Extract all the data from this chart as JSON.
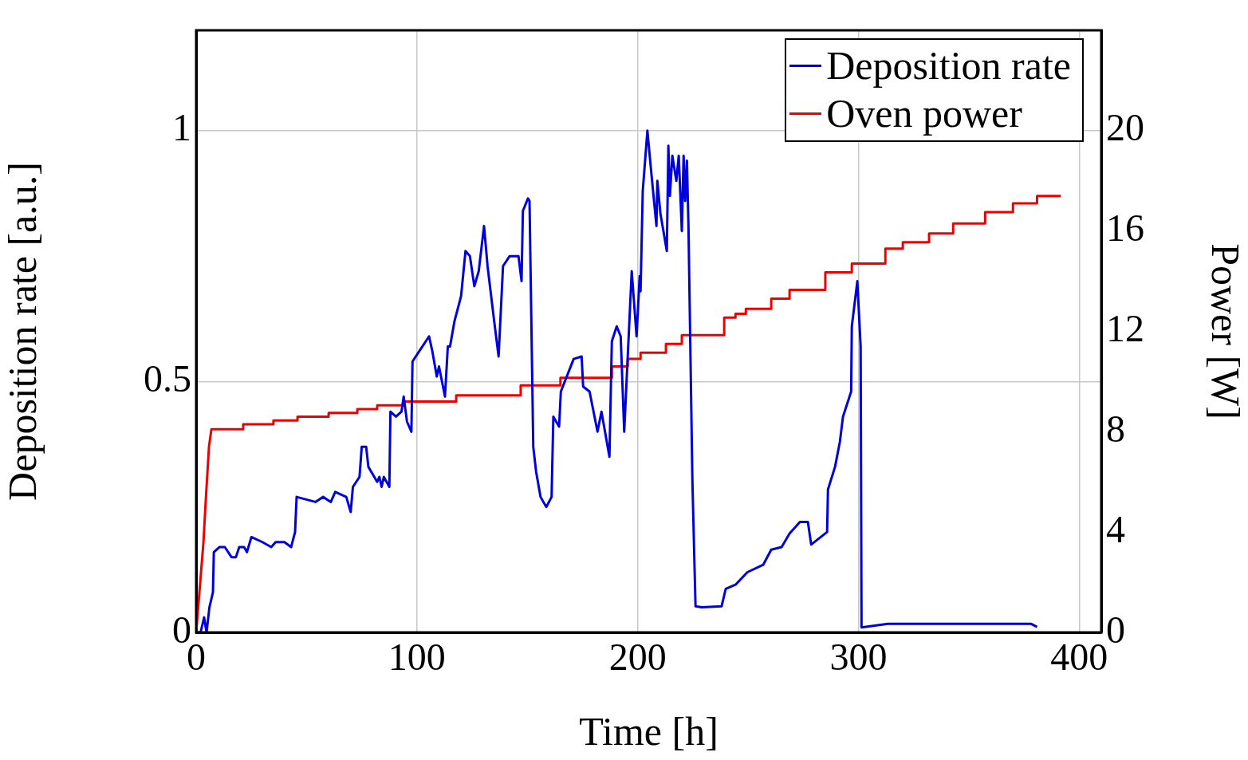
{
  "chart_data": {
    "type": "line",
    "xlabel": "Time [h]",
    "ylabel": "Deposition rate [a.u.]",
    "y2label": "Power [W]",
    "xlim": [
      0,
      410
    ],
    "xticks": [
      0,
      100,
      200,
      300,
      400
    ],
    "ylim": [
      0,
      1.2
    ],
    "yticks": [
      0,
      0.5,
      1
    ],
    "y2lim": [
      0,
      24
    ],
    "y2ticks": [
      0,
      4,
      8,
      12,
      16,
      20
    ],
    "grid": true,
    "legend": "top right",
    "marker": "none",
    "line_style": "solid",
    "series": [
      {
        "name": "Deposition rate",
        "color": "#0000dd",
        "x": [
          0,
          2,
          3.6,
          4.7,
          6,
          7.6,
          8,
          10.5,
          13,
          16,
          18,
          19.5,
          21.7,
          23,
          25,
          30,
          34,
          36,
          40,
          43,
          44.8,
          45.5,
          54,
          57.5,
          61,
          63,
          68,
          70,
          71,
          74,
          75,
          77,
          78,
          82,
          83,
          84,
          85,
          87.5,
          88,
          90.5,
          93,
          94,
          95.5,
          97.5,
          98,
          101,
          105.5,
          107,
          109,
          110,
          112.7,
          114,
          115,
          117,
          120,
          122,
          124,
          126,
          128,
          130.4,
          132,
          135,
          137,
          139,
          142,
          146,
          147.4,
          148,
          150.3,
          151,
          152.7,
          154,
          156,
          158.6,
          161,
          161.8,
          164.4,
          165.2,
          171,
          174.6,
          175.3,
          178.2,
          181.8,
          183.6,
          187.2,
          188.3,
          190.5,
          192.3,
          193.9,
          197.3,
          199.5,
          200.9,
          201.3,
          202.3,
          204.4,
          206.3,
          208.5,
          208.9,
          210.3,
          213.2,
          213.9,
          214.6,
          215.7,
          217.5,
          218.6,
          220,
          220.8,
          221.5,
          222.3,
          223,
          224.8,
          226.2,
          229.1,
          238,
          239.9,
          244.3,
          249.7,
          256.9,
          260.5,
          265.2,
          268.8,
          273.5,
          277.1,
          278.6,
          285.8,
          286.2,
          289.4,
          291.6,
          293,
          296.7,
          297,
          299.5,
          301,
          301.4,
          313.3,
          378.3,
          380.9
        ],
        "values": [
          0,
          0,
          0.03,
          0,
          0.05,
          0.08,
          0.16,
          0.17,
          0.17,
          0.15,
          0.15,
          0.17,
          0.17,
          0.16,
          0.19,
          0.18,
          0.17,
          0.18,
          0.18,
          0.17,
          0.2,
          0.27,
          0.26,
          0.27,
          0.26,
          0.28,
          0.27,
          0.24,
          0.29,
          0.31,
          0.37,
          0.37,
          0.33,
          0.3,
          0.31,
          0.29,
          0.31,
          0.29,
          0.44,
          0.43,
          0.44,
          0.47,
          0.42,
          0.4,
          0.54,
          0.56,
          0.59,
          0.56,
          0.51,
          0.53,
          0.47,
          0.57,
          0.57,
          0.62,
          0.67,
          0.76,
          0.75,
          0.69,
          0.72,
          0.81,
          0.73,
          0.62,
          0.55,
          0.73,
          0.75,
          0.75,
          0.7,
          0.84,
          0.865,
          0.86,
          0.37,
          0.32,
          0.27,
          0.25,
          0.27,
          0.43,
          0.41,
          0.48,
          0.545,
          0.55,
          0.49,
          0.48,
          0.4,
          0.44,
          0.35,
          0.58,
          0.61,
          0.59,
          0.4,
          0.72,
          0.59,
          0.71,
          0.68,
          0.88,
          1.0,
          0.91,
          0.81,
          0.9,
          0.835,
          0.76,
          0.97,
          0.87,
          0.95,
          0.9,
          0.95,
          0.8,
          0.95,
          0.86,
          0.94,
          0.81,
          0.3,
          0.052,
          0.05,
          0.052,
          0.087,
          0.095,
          0.12,
          0.135,
          0.165,
          0.17,
          0.197,
          0.22,
          0.22,
          0.175,
          0.2,
          0.285,
          0.33,
          0.38,
          0.43,
          0.48,
          0.61,
          0.7,
          0.57,
          0.01,
          0.017,
          0.017,
          0.011
        ]
      },
      {
        "name": "Oven power",
        "color": "#ee0000",
        "axis": "y2",
        "x": [
          0,
          3.3,
          4.3,
          5.8,
          6.9,
          21.3,
          21.3,
          35,
          35,
          45.9,
          45.9,
          60,
          60,
          73,
          73,
          82,
          82,
          94.3,
          94.3,
          117.8,
          117.8,
          147,
          147,
          165,
          165,
          188.3,
          188.3,
          195.5,
          195.5,
          201.3,
          201.3,
          212.8,
          212.8,
          220,
          220,
          239.2,
          239.2,
          244.3,
          244.3,
          249,
          249,
          260.5,
          260.5,
          268.8,
          268.8,
          285,
          285,
          297,
          297,
          312.2,
          312.2,
          320.1,
          320.1,
          332,
          332,
          342.9,
          342.9,
          357.4,
          357.4,
          370,
          370,
          380.9,
          380.9,
          391.7
        ],
        "values": [
          0,
          3.6,
          5.2,
          7.4,
          8.1,
          8.1,
          8.3,
          8.3,
          8.45,
          8.45,
          8.6,
          8.6,
          8.75,
          8.75,
          8.9,
          8.9,
          9.05,
          9.05,
          9.2,
          9.2,
          9.45,
          9.45,
          9.85,
          9.85,
          10.15,
          10.15,
          10.6,
          10.6,
          10.9,
          10.9,
          11.15,
          11.15,
          11.5,
          11.5,
          11.85,
          11.85,
          12.55,
          12.55,
          12.7,
          12.7,
          12.9,
          12.9,
          13.3,
          13.3,
          13.65,
          13.65,
          14.35,
          14.35,
          14.7,
          14.7,
          15.3,
          15.3,
          15.55,
          15.55,
          15.9,
          15.9,
          16.3,
          16.3,
          16.75,
          16.75,
          17.1,
          17.1,
          17.4,
          17.4
        ]
      }
    ]
  }
}
